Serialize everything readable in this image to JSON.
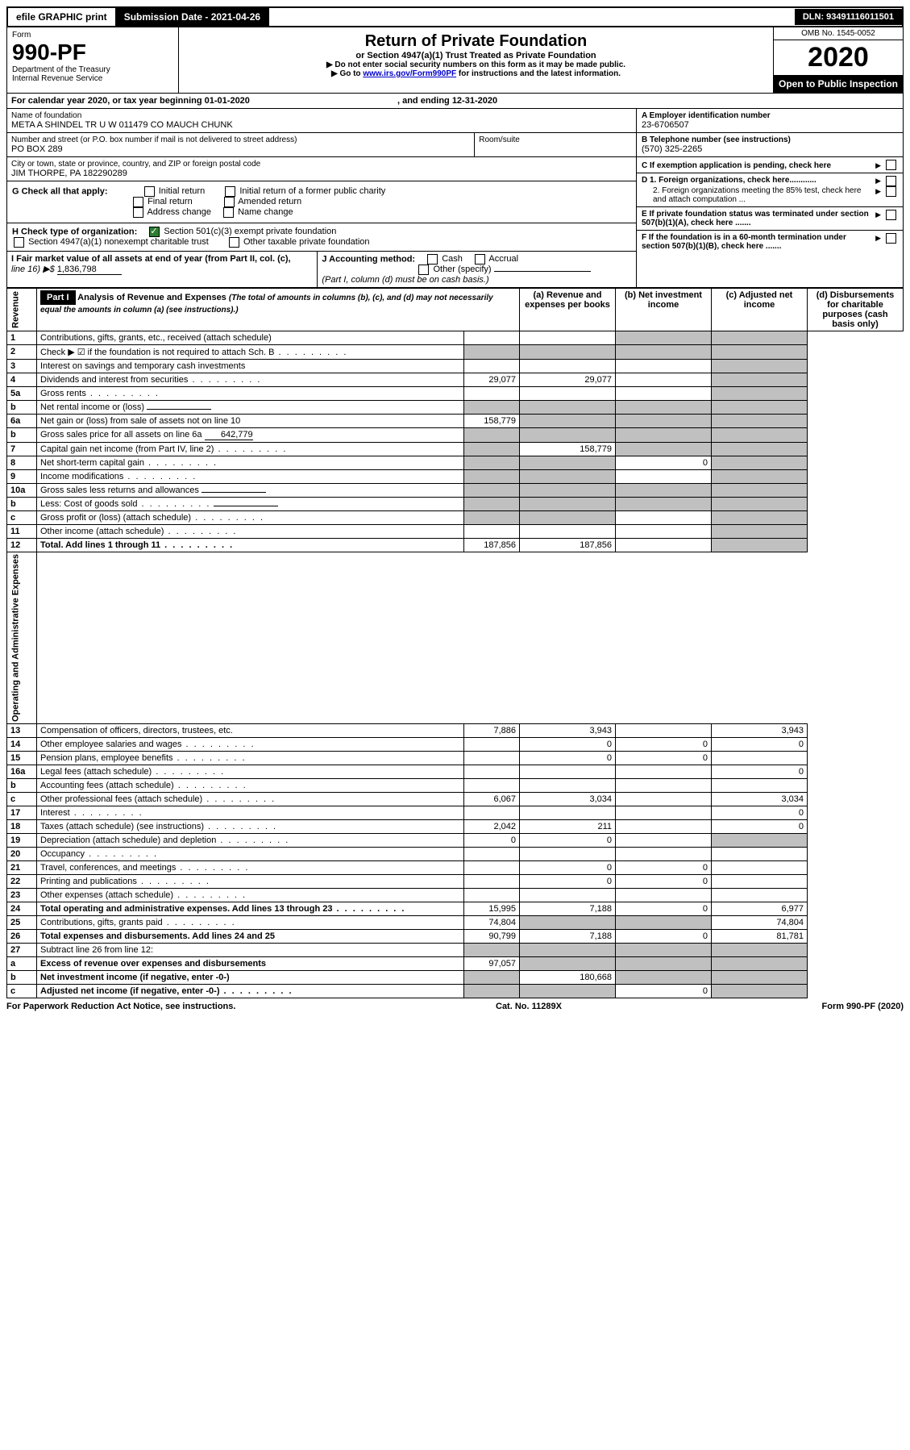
{
  "topbar": {
    "efile": "efile GRAPHIC print",
    "submission_label": "Submission Date - 2021-04-26",
    "dln": "DLN: 93491116011501"
  },
  "header": {
    "form_word": "Form",
    "form_number": "990-PF",
    "dept": "Department of the Treasury",
    "irs": "Internal Revenue Service",
    "title": "Return of Private Foundation",
    "subtitle": "or Section 4947(a)(1) Trust Treated as Private Foundation",
    "note1": "▶ Do not enter social security numbers on this form as it may be made public.",
    "note2_prefix": "▶ Go to ",
    "note2_link": "www.irs.gov/Form990PF",
    "note2_suffix": " for instructions and the latest information.",
    "omb": "OMB No. 1545-0052",
    "year": "2020",
    "inspection": "Open to Public Inspection"
  },
  "calendar": {
    "text": "For calendar year 2020, or tax year beginning 01-01-2020",
    "ending": ", and ending 12-31-2020"
  },
  "identity": {
    "name_label": "Name of foundation",
    "name": "META A SHINDEL TR U W 011479 CO MAUCH CHUNK",
    "addr_label": "Number and street (or P.O. box number if mail is not delivered to street address)",
    "addr": "PO BOX 289",
    "room_label": "Room/suite",
    "city_label": "City or town, state or province, country, and ZIP or foreign postal code",
    "city": "JIM THORPE, PA  182290289",
    "a_label": "A Employer identification number",
    "ein": "23-6706507",
    "b_label": "B Telephone number (see instructions)",
    "phone": "(570) 325-2265",
    "c_label": "C If exemption application is pending, check here",
    "d1": "D 1. Foreign organizations, check here............",
    "d2": "2. Foreign organizations meeting the 85% test, check here and attach computation ...",
    "e": "E  If private foundation status was terminated under section 507(b)(1)(A), check here .......",
    "f": "F  If the foundation is in a 60-month termination under section 507(b)(1)(B), check here .......",
    "g_label": "G Check all that apply:",
    "g_opts": [
      "Initial return",
      "Initial return of a former public charity",
      "Final return",
      "Amended return",
      "Address change",
      "Name change"
    ],
    "h_label": "H Check type of organization:",
    "h_opts": [
      "Section 501(c)(3) exempt private foundation",
      "Section 4947(a)(1) nonexempt charitable trust",
      "Other taxable private foundation"
    ],
    "i_label": "I Fair market value of all assets at end of year (from Part II, col. (c),",
    "i_line": "line 16) ▶$ ",
    "i_value": "1,836,798",
    "j_label": "J Accounting method:",
    "j_opts": [
      "Cash",
      "Accrual",
      "Other (specify)"
    ],
    "j_note": "(Part I, column (d) must be on cash basis.)"
  },
  "part1": {
    "label": "Part I",
    "title": "Analysis of Revenue and Expenses",
    "desc": "(The total of amounts in columns (b), (c), and (d) may not necessarily equal the amounts in column (a) (see instructions).)",
    "col_a": "(a) Revenue and expenses per books",
    "col_b": "(b) Net investment income",
    "col_c": "(c) Adjusted net income",
    "col_d": "(d) Disbursements for charitable purposes (cash basis only)"
  },
  "side_labels": {
    "revenue": "Revenue",
    "expenses": "Operating and Administrative Expenses"
  },
  "rows": [
    {
      "n": "1",
      "t": "Contributions, gifts, grants, etc., received (attach schedule)",
      "a": "",
      "b": "",
      "c": "S",
      "d": "S"
    },
    {
      "n": "2",
      "t": "Check ▶ ☑ if the foundation is not required to attach Sch. B",
      "a": "S",
      "b": "S",
      "c": "S",
      "d": "S",
      "dots": true,
      "check": true
    },
    {
      "n": "3",
      "t": "Interest on savings and temporary cash investments",
      "a": "",
      "b": "",
      "c": "",
      "d": "S"
    },
    {
      "n": "4",
      "t": "Dividends and interest from securities",
      "a": "29,077",
      "b": "29,077",
      "c": "",
      "d": "S",
      "dots": true
    },
    {
      "n": "5a",
      "t": "Gross rents",
      "a": "",
      "b": "",
      "c": "",
      "d": "S",
      "dots": true
    },
    {
      "n": "b",
      "t": "Net rental income or (loss)",
      "a": "S",
      "b": "S",
      "c": "S",
      "d": "S",
      "inline": true
    },
    {
      "n": "6a",
      "t": "Net gain or (loss) from sale of assets not on line 10",
      "a": "158,779",
      "b": "S",
      "c": "S",
      "d": "S"
    },
    {
      "n": "b",
      "t": "Gross sales price for all assets on line 6a",
      "a": "S",
      "b": "S",
      "c": "S",
      "d": "S",
      "inline_val": "642,779"
    },
    {
      "n": "7",
      "t": "Capital gain net income (from Part IV, line 2)",
      "a": "S",
      "b": "158,779",
      "c": "S",
      "d": "S",
      "dots": true
    },
    {
      "n": "8",
      "t": "Net short-term capital gain",
      "a": "S",
      "b": "S",
      "c": "0",
      "d": "S",
      "dots": true
    },
    {
      "n": "9",
      "t": "Income modifications",
      "a": "S",
      "b": "S",
      "c": "",
      "d": "S",
      "dots": true
    },
    {
      "n": "10a",
      "t": "Gross sales less returns and allowances",
      "a": "S",
      "b": "S",
      "c": "S",
      "d": "S",
      "inline": true
    },
    {
      "n": "b",
      "t": "Less: Cost of goods sold",
      "a": "S",
      "b": "S",
      "c": "S",
      "d": "S",
      "inline": true,
      "dots": true
    },
    {
      "n": "c",
      "t": "Gross profit or (loss) (attach schedule)",
      "a": "S",
      "b": "S",
      "c": "",
      "d": "S",
      "dots": true
    },
    {
      "n": "11",
      "t": "Other income (attach schedule)",
      "a": "",
      "b": "",
      "c": "",
      "d": "S",
      "dots": true
    },
    {
      "n": "12",
      "t": "Total. Add lines 1 through 11",
      "a": "187,856",
      "b": "187,856",
      "c": "",
      "d": "S",
      "bold": true,
      "dots": true
    }
  ],
  "exp_rows": [
    {
      "n": "13",
      "t": "Compensation of officers, directors, trustees, etc.",
      "a": "7,886",
      "b": "3,943",
      "c": "",
      "d": "3,943"
    },
    {
      "n": "14",
      "t": "Other employee salaries and wages",
      "a": "",
      "b": "0",
      "c": "0",
      "d": "0",
      "dots": true
    },
    {
      "n": "15",
      "t": "Pension plans, employee benefits",
      "a": "",
      "b": "0",
      "c": "0",
      "d": "",
      "dots": true
    },
    {
      "n": "16a",
      "t": "Legal fees (attach schedule)",
      "a": "",
      "b": "",
      "c": "",
      "d": "0",
      "dots": true
    },
    {
      "n": "b",
      "t": "Accounting fees (attach schedule)",
      "a": "",
      "b": "",
      "c": "",
      "d": "",
      "dots": true
    },
    {
      "n": "c",
      "t": "Other professional fees (attach schedule)",
      "a": "6,067",
      "b": "3,034",
      "c": "",
      "d": "3,034",
      "dots": true
    },
    {
      "n": "17",
      "t": "Interest",
      "a": "",
      "b": "",
      "c": "",
      "d": "0",
      "dots": true
    },
    {
      "n": "18",
      "t": "Taxes (attach schedule) (see instructions)",
      "a": "2,042",
      "b": "211",
      "c": "",
      "d": "0",
      "dots": true
    },
    {
      "n": "19",
      "t": "Depreciation (attach schedule) and depletion",
      "a": "0",
      "b": "0",
      "c": "",
      "d": "S",
      "dots": true
    },
    {
      "n": "20",
      "t": "Occupancy",
      "a": "",
      "b": "",
      "c": "",
      "d": "",
      "dots": true
    },
    {
      "n": "21",
      "t": "Travel, conferences, and meetings",
      "a": "",
      "b": "0",
      "c": "0",
      "d": "",
      "dots": true
    },
    {
      "n": "22",
      "t": "Printing and publications",
      "a": "",
      "b": "0",
      "c": "0",
      "d": "",
      "dots": true
    },
    {
      "n": "23",
      "t": "Other expenses (attach schedule)",
      "a": "",
      "b": "",
      "c": "",
      "d": "",
      "dots": true
    },
    {
      "n": "24",
      "t": "Total operating and administrative expenses. Add lines 13 through 23",
      "a": "15,995",
      "b": "7,188",
      "c": "0",
      "d": "6,977",
      "bold": true,
      "dots": true
    },
    {
      "n": "25",
      "t": "Contributions, gifts, grants paid",
      "a": "74,804",
      "b": "S",
      "c": "S",
      "d": "74,804",
      "dots": true
    },
    {
      "n": "26",
      "t": "Total expenses and disbursements. Add lines 24 and 25",
      "a": "90,799",
      "b": "7,188",
      "c": "0",
      "d": "81,781",
      "bold": true
    }
  ],
  "final_rows": [
    {
      "n": "27",
      "t": "Subtract line 26 from line 12:",
      "a": "S",
      "b": "S",
      "c": "S",
      "d": "S"
    },
    {
      "n": "a",
      "t": "Excess of revenue over expenses and disbursements",
      "a": "97,057",
      "b": "S",
      "c": "S",
      "d": "S",
      "bold": true
    },
    {
      "n": "b",
      "t": "Net investment income (if negative, enter -0-)",
      "a": "S",
      "b": "180,668",
      "c": "S",
      "d": "S",
      "bold": true
    },
    {
      "n": "c",
      "t": "Adjusted net income (if negative, enter -0-)",
      "a": "S",
      "b": "S",
      "c": "0",
      "d": "S",
      "bold": true,
      "dots": true
    }
  ],
  "footer": {
    "left": "For Paperwork Reduction Act Notice, see instructions.",
    "mid": "Cat. No. 11289X",
    "right": "Form 990-PF (2020)"
  },
  "colors": {
    "shaded": "#c0c0c0",
    "link": "#0000cc",
    "check_green": "#2e7d32"
  }
}
